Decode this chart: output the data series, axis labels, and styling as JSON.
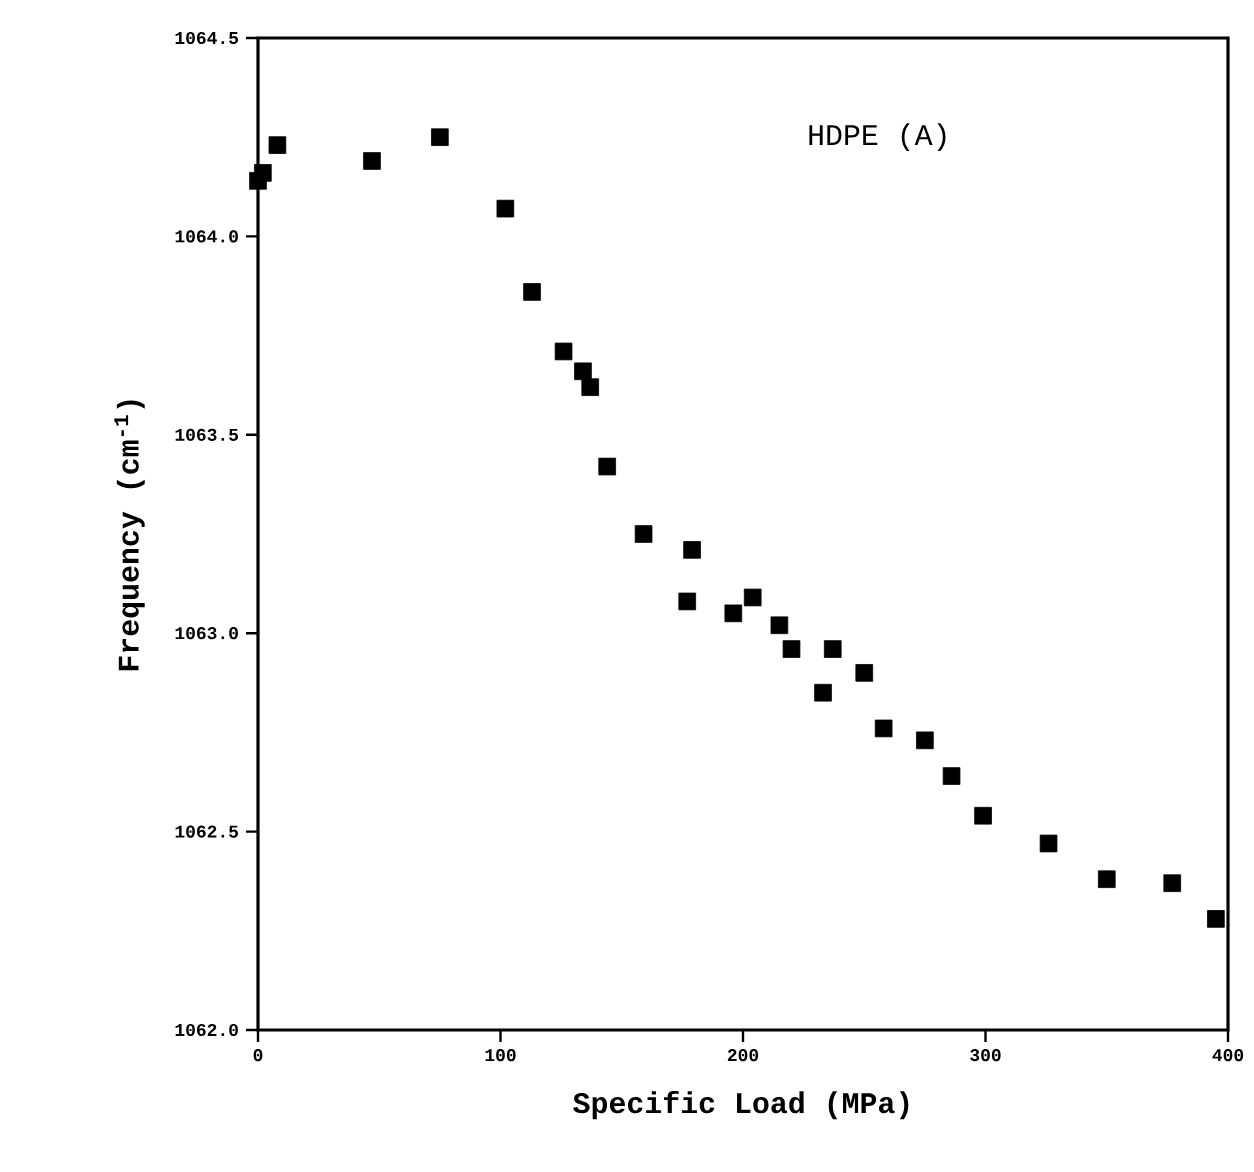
{
  "chart_data": {
    "type": "scatter",
    "xlabel": "Specific Load (MPa)",
    "ylabel": "Frequency (cm$^{-1}$)",
    "annotations": [
      "HDPE  (A)"
    ],
    "x": [
      0,
      2,
      8,
      47,
      75,
      102,
      113,
      126,
      134,
      137,
      144,
      159,
      179,
      177,
      196,
      204,
      215,
      220,
      237,
      233,
      250,
      258,
      275,
      286,
      299,
      326,
      350,
      377,
      395
    ],
    "series": [
      {
        "color": "#000000",
        "values": [
          1064.14,
          1064.16,
          1064.23,
          1064.19,
          1064.25,
          1064.07,
          1063.86,
          1063.71,
          1063.66,
          1063.62,
          1063.42,
          1063.25,
          1063.21,
          1063.08,
          1063.05,
          1063.09,
          1063.02,
          1062.96,
          1062.96,
          1062.85,
          1062.9,
          1062.76,
          1062.73,
          1062.64,
          1062.54,
          1062.47,
          1062.38,
          1062.37,
          1062.28
        ]
      }
    ],
    "xlim": [
      0,
      400
    ],
    "ylim": [
      1062.0,
      1064.5
    ],
    "xticks": [
      0,
      100,
      200,
      300,
      400
    ],
    "yticks": [
      {
        "value": 1062.0,
        "label": "1062.0"
      },
      {
        "value": 1062.5,
        "label": "1062.5"
      },
      {
        "value": 1063.0,
        "label": "1063.0"
      },
      {
        "value": 1063.5,
        "label": "1063.5"
      },
      {
        "value": 1064.0,
        "label": "1064.0"
      },
      {
        "value": 1064.5,
        "label": "1064.5"
      }
    ],
    "marker": "square",
    "grid": false
  }
}
